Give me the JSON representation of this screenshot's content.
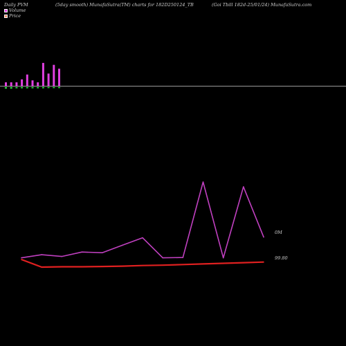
{
  "header": {
    "left": "Daily PVM",
    "middle": "(5day smooth) MunafaSutra(TM) charts for 182D250124_TB",
    "right": "(Goi  Tbill 182d-25/01/24) MunafaSutra.com"
  },
  "legend": {
    "volume_label": "Volume",
    "price_label": "Price",
    "volume_color": "#e040e0",
    "price_color": "#ff8c69"
  },
  "chart_data": {
    "type": "line",
    "x": [
      1,
      2,
      3,
      4,
      5,
      6,
      7,
      8,
      9,
      10,
      11,
      12,
      13
    ],
    "volume_bars": {
      "upper": [
        2,
        2,
        2,
        3.5,
        6,
        3,
        2,
        12,
        6.5,
        11,
        9
      ],
      "lower": [
        0.6,
        0.6,
        0.4,
        0.4,
        0.4,
        0.4,
        0.4,
        0.4,
        0.3,
        0.3,
        0.3
      ],
      "colors": [
        "#e040e0",
        "#e040e0",
        "#e040e0",
        "#e040e0",
        "#e040e0",
        "#e040e0",
        "#e040e0",
        "#e040e0",
        "#e040e0",
        "#e040e0",
        "#e040e0"
      ],
      "lower_color": "#2ecc40"
    },
    "series": [
      {
        "key": "volume",
        "color": "#c040c0",
        "values": [
          0.35,
          0.8,
          0.55,
          1.2,
          1.1,
          2.2,
          3.3,
          0.35,
          0.4,
          11.5,
          0.35,
          10.8,
          3.4
        ]
      },
      {
        "key": "price",
        "color": "#e02020",
        "values": [
          99.8,
          99.56,
          99.57,
          99.57,
          99.58,
          99.59,
          99.61,
          99.62,
          99.64,
          99.66,
          99.68,
          99.7,
          99.72
        ]
      }
    ],
    "y_labels": {
      "volume": "0M",
      "price": "99.80"
    },
    "grid": false
  }
}
